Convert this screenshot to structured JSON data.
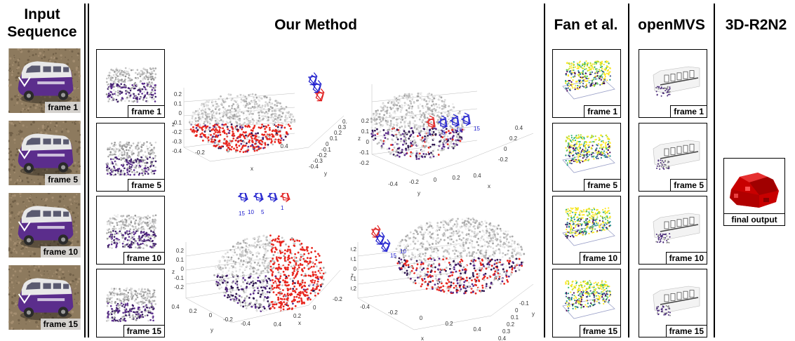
{
  "headers": {
    "input": "Input Sequence",
    "ours": "Our Method",
    "fan": "Fan et al.",
    "openmvs": "openMVS",
    "r2n2": "3D-R2N2"
  },
  "input_frames": [
    "frame 1",
    "frame 5",
    "frame 10",
    "frame 15"
  ],
  "our_frames": [
    "frame 1",
    "frame 5",
    "frame 10",
    "frame 15"
  ],
  "fan_frames": [
    "frame 1",
    "frame 5",
    "frame 10",
    "frame 15"
  ],
  "openmvs_frames": [
    "frame 1",
    "frame 5",
    "frame 10",
    "frame 15"
  ],
  "r2n2_label": "final output",
  "plots": {
    "p1": {
      "xlabel": "x",
      "ylabel": "y",
      "zlabel": "z",
      "xticks": [
        "-0.2",
        "0",
        "0.2",
        "0.4"
      ],
      "yticks": [
        "-0.4",
        "-0.3",
        "-0.2",
        "-0.1",
        "0",
        "0.1",
        "0.2",
        "0.3",
        "0.4"
      ],
      "zticks": [
        "0.2",
        "0.1",
        "0",
        "-0.1",
        "-0.2",
        "-0.3",
        "-0.4"
      ]
    },
    "p2": {
      "xlabel": "x",
      "ylabel": "y",
      "zlabel": "z",
      "xticks": [
        "-0.4",
        "-0.2",
        "0",
        "0.2",
        "0.4"
      ],
      "yticks": [
        "-0.2",
        "0",
        "0.2",
        "0.4"
      ],
      "zticks": [
        "0.2",
        "0.1",
        "0",
        "-0.1",
        "-0.2"
      ],
      "cam_labels": [
        "1",
        "5",
        "10",
        "15"
      ]
    },
    "p3": {
      "xlabel": "x",
      "ylabel": "y",
      "zlabel": "z",
      "xticks": [
        "0.4",
        "0.2",
        "0",
        "-0.2",
        "-0.4"
      ],
      "yticks": [
        "0.4",
        "0.2",
        "0",
        "-0.2",
        "-0.4"
      ],
      "zticks": [
        "0.2",
        "0.1",
        "0",
        "-0.1",
        "-0.2"
      ],
      "cam_labels": [
        "15",
        "10",
        "5",
        "1"
      ]
    },
    "p4": {
      "xlabel": "x",
      "ylabel": "y",
      "zlabel": "z",
      "xticks": [
        "-0.4",
        "-0.2",
        "0",
        "0.2",
        "0.4"
      ],
      "yticks": [
        "-0.1",
        "0",
        "0.1",
        "0.2",
        "0.3",
        "0.4"
      ],
      "zticks": [
        "0.2",
        "0.1",
        "0",
        "-0.1",
        "-0.2"
      ],
      "cam_labels": [
        "1",
        "15",
        "10"
      ]
    }
  },
  "colors": {
    "van_purple": "#5b2d8c",
    "van_white": "#e8e8e8",
    "cam_blue": "#1a1acc",
    "cam_red": "#e01a1a",
    "points_red": "#e8261e",
    "r2n2_red": "#c80000"
  }
}
